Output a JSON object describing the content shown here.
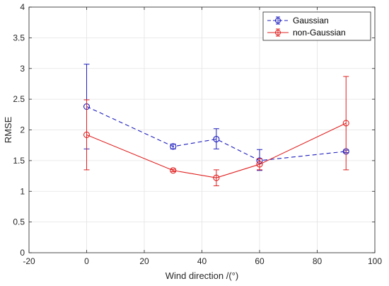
{
  "chart_data": {
    "type": "line",
    "title": "",
    "xlabel": "Wind direction /(°)",
    "ylabel": "RMSE",
    "xlim": [
      -20,
      100
    ],
    "ylim": [
      0,
      4
    ],
    "xticks": [
      -20,
      0,
      20,
      40,
      60,
      80,
      100
    ],
    "yticks": [
      0,
      0.5,
      1,
      1.5,
      2,
      2.5,
      3,
      3.5,
      4
    ],
    "xtick_labels": [
      "-20",
      "0",
      "20",
      "40",
      "60",
      "80",
      "100"
    ],
    "ytick_labels": [
      "0",
      "0.5",
      "1",
      "1.5",
      "2",
      "2.5",
      "3",
      "3.5",
      "4"
    ],
    "grid": true,
    "legend_position": "top-right",
    "series": [
      {
        "name": "Gaussian",
        "color": "#1f1fbf",
        "line_style": "dashed",
        "marker": "circle",
        "x": [
          0,
          30,
          45,
          60,
          90
        ],
        "y": [
          2.38,
          1.73,
          1.85,
          1.5,
          1.65
        ],
        "err_low": [
          0.69,
          0.04,
          0.16,
          0.16,
          0.02
        ],
        "err_high": [
          0.69,
          0.04,
          0.17,
          0.18,
          0.02
        ]
      },
      {
        "name": "non-Gaussian",
        "color": "#e02020",
        "line_style": "solid",
        "marker": "circle",
        "x": [
          0,
          30,
          45,
          60,
          90
        ],
        "y": [
          1.92,
          1.34,
          1.22,
          1.44,
          2.11
        ],
        "err_low": [
          0.57,
          0.02,
          0.13,
          0.09,
          0.76
        ],
        "err_high": [
          0.57,
          0.02,
          0.13,
          0.09,
          0.76
        ]
      }
    ]
  }
}
